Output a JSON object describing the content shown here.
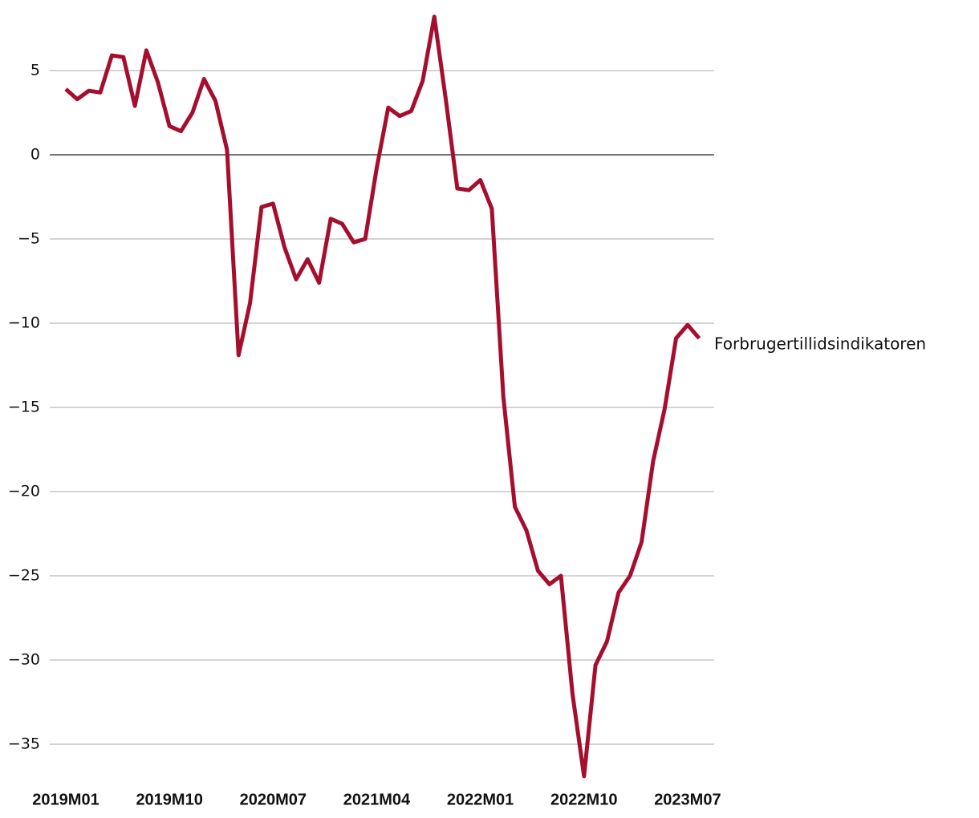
{
  "chart_data": {
    "type": "line",
    "categories": [
      "2019M01",
      null,
      null,
      null,
      null,
      null,
      null,
      null,
      null,
      "2019M10",
      null,
      null,
      null,
      null,
      null,
      null,
      null,
      null,
      "2020M07",
      null,
      null,
      null,
      null,
      null,
      null,
      null,
      null,
      "2021M04",
      null,
      null,
      null,
      null,
      null,
      null,
      null,
      null,
      "2022M01",
      null,
      null,
      null,
      null,
      null,
      null,
      null,
      null,
      "2022M10",
      null,
      null,
      null,
      null,
      null,
      null,
      null,
      null,
      "2023M07",
      null
    ],
    "series": [
      {
        "name": "Forbrugertillidsindikatoren",
        "color": "#a50f2d",
        "values": [
          3.9,
          3.3,
          3.8,
          3.7,
          5.9,
          5.8,
          2.9,
          6.2,
          4.3,
          1.7,
          1.4,
          2.5,
          4.5,
          3.2,
          0.3,
          -11.9,
          -8.8,
          -3.1,
          -2.9,
          -5.5,
          -7.4,
          -6.2,
          -7.6,
          -3.8,
          -4.1,
          -5.2,
          -5.0,
          -0.8,
          2.8,
          2.3,
          2.6,
          4.4,
          8.2,
          3.3,
          -2.0,
          -2.1,
          -1.5,
          -3.2,
          -14.4,
          -20.9,
          -22.3,
          -24.7,
          -25.5,
          -25.0,
          -32.0,
          -36.9,
          -30.3,
          -28.9,
          -26.0,
          -25.0,
          -23.0,
          -18.2,
          -15.1,
          -10.9,
          -10.1,
          -10.9
        ]
      }
    ],
    "ylim": [
      -37.5,
      8.5
    ],
    "yticks": [
      {
        "value": -35,
        "label": "−35"
      },
      {
        "value": -30,
        "label": "−30"
      },
      {
        "value": -25,
        "label": "−25"
      },
      {
        "value": -20,
        "label": "−20"
      },
      {
        "value": -15,
        "label": "−15"
      },
      {
        "value": -10,
        "label": "−10"
      },
      {
        "value": -5,
        "label": "−5"
      },
      0,
      5
    ],
    "grid": true
  }
}
